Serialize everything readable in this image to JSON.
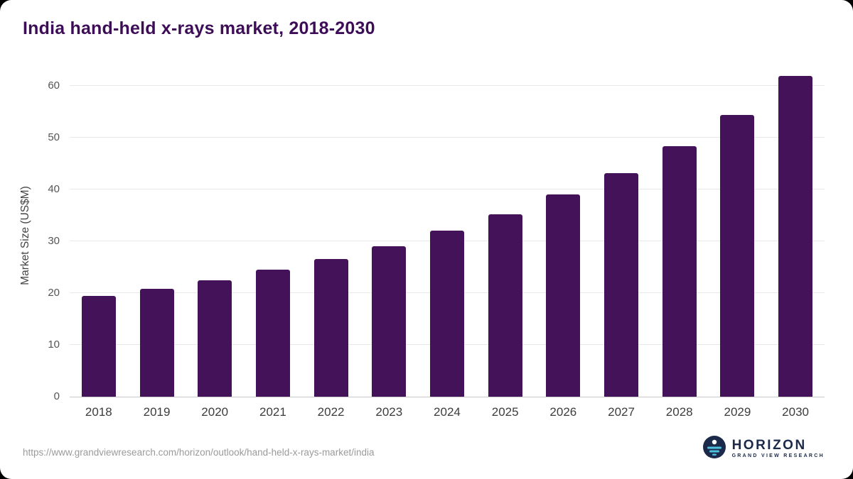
{
  "header": {
    "title": "India hand-held x-rays market, 2018-2030"
  },
  "footer": {
    "source_url": "https://www.grandviewresearch.com/horizon/outlook/hand-held-x-rays-market/india",
    "logo": {
      "name": "HORIZON",
      "subtitle": "GRAND VIEW RESEARCH",
      "icon": "horizon-sunset-icon"
    }
  },
  "colors": {
    "bar": "#441259",
    "title": "#3d0e57",
    "gridline": "#e8e8e8",
    "axis": "#c9c9c9",
    "logo_navy": "#1b2a4a",
    "logo_teal": "#4cc2e0"
  },
  "chart_data": {
    "type": "bar",
    "title": "India hand-held x-rays market, 2018-2030",
    "categories": [
      "2018",
      "2019",
      "2020",
      "2021",
      "2022",
      "2023",
      "2024",
      "2025",
      "2026",
      "2027",
      "2028",
      "2029",
      "2030"
    ],
    "values": [
      19.5,
      20.8,
      22.4,
      24.5,
      26.6,
      29.1,
      32.0,
      35.2,
      39.0,
      43.2,
      48.4,
      54.4,
      61.9
    ],
    "xlabel": "",
    "ylabel": "Market Size (US$M)",
    "ylim": [
      0,
      60
    ],
    "yticks": [
      0,
      10,
      20,
      30,
      40,
      50,
      60
    ],
    "grid": true,
    "legend": false,
    "bar_color": "#441259"
  }
}
